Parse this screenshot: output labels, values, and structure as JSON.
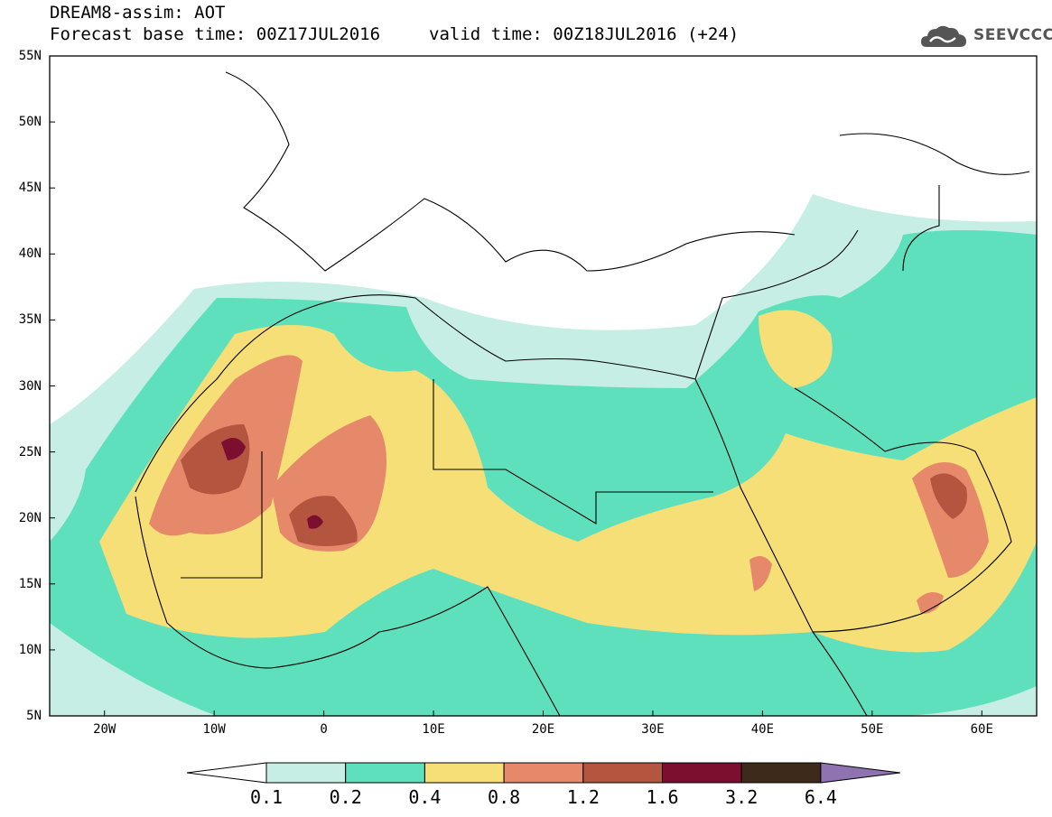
{
  "header": {
    "title_line1": "DREAM8-assim: AOT",
    "title_line2": "Forecast base time: 00Z17JUL2016",
    "valid_time": "valid time: 00Z18JUL2016 (+24)",
    "logo_text": "SEEVCCC",
    "logo_icon": "cloud-icon"
  },
  "map": {
    "region": "Northern Africa, Mediterranean, Middle East",
    "lat_labels": [
      "55N",
      "50N",
      "45N",
      "40N",
      "35N",
      "30N",
      "25N",
      "20N",
      "15N",
      "10N",
      "5N"
    ],
    "lon_labels": [
      "20W",
      "10W",
      "0",
      "10E",
      "20E",
      "30E",
      "40E",
      "50E",
      "60E"
    ],
    "lat_range": [
      5,
      55
    ],
    "lon_range": [
      -25,
      65
    ]
  },
  "colorbar": {
    "labels": [
      "0.1",
      "0.2",
      "0.4",
      "0.8",
      "1.2",
      "1.6",
      "3.2",
      "6.4"
    ],
    "colors": [
      "#ffffff",
      "#c6eee5",
      "#5fe0bd",
      "#f6df76",
      "#e6896a",
      "#b4553f",
      "#7c0e30",
      "#3d2a1a",
      "#8f73b0"
    ]
  }
}
